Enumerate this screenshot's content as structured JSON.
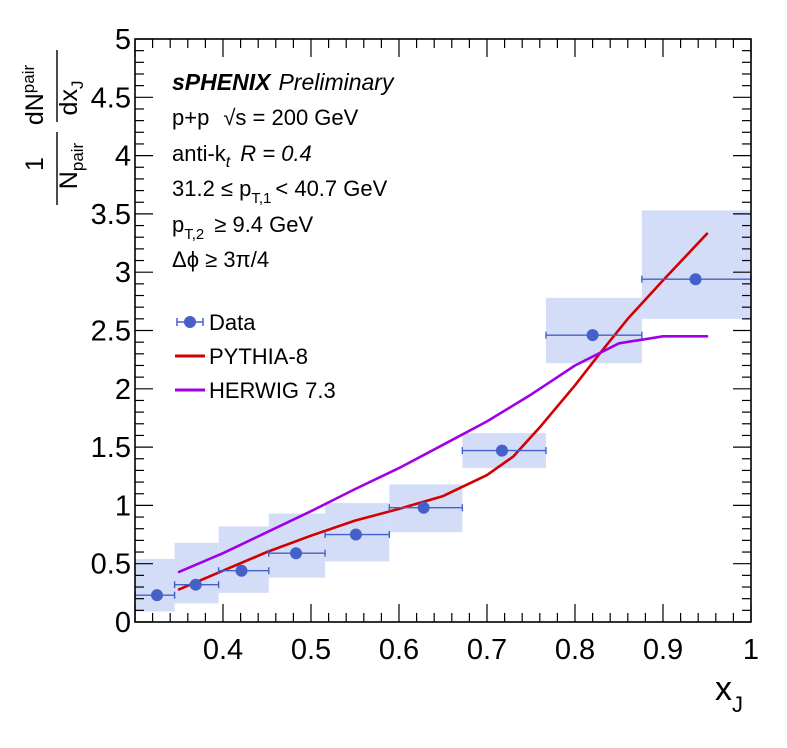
{
  "header": {
    "brand": "sPHENIX",
    "status": "Preliminary"
  },
  "annotations": {
    "system": "p+p",
    "energy": "√s = 200 GeV",
    "jet_algo": "anti-k",
    "jet_algo_sub": "t",
    "radius": "R = 0.4",
    "pt1_pre": "31.2 ≤ p",
    "pt1_sub": "T,1",
    "pt1_post": "< 40.7 GeV",
    "pt2_pre": "p",
    "pt2_sub": "T,2",
    "pt2_post": "≥ 9.4 GeV",
    "dphi": "Δϕ ≥ 3π/4"
  },
  "axes": {
    "x_title": "x",
    "x_title_sub": "J",
    "y_title_num_main": "1",
    "y_title_den_main": "N",
    "y_title_den_sub": "pair",
    "y_title_d_main": "dN",
    "y_title_d_sub": "pair",
    "y_title_dx_main": "dx",
    "y_title_dx_sub": "J"
  },
  "legend": {
    "data": "Data",
    "pythia": "PYTHIA-8",
    "herwig": "HERWIG 7.3"
  },
  "colors": {
    "data": "#4560c8",
    "syst_box": "#d4ddf8",
    "pythia": "#d20000",
    "herwig": "#a000e6"
  },
  "chart_data": {
    "type": "scatter",
    "xlim": [
      0.3,
      1.0
    ],
    "ylim": [
      0,
      5
    ],
    "xticks": [
      "0.4",
      "0.5",
      "0.6",
      "0.7",
      "0.8",
      "0.9",
      "1"
    ],
    "xtick_values": [
      0.4,
      0.5,
      0.6,
      0.7,
      0.8,
      0.9,
      1.0
    ],
    "yticks": [
      "0",
      "0.5",
      "1",
      "1.5",
      "2",
      "2.5",
      "3",
      "3.5",
      "4",
      "4.5",
      "5"
    ],
    "ytick_values": [
      0,
      0.5,
      1,
      1.5,
      2,
      2.5,
      3,
      3.5,
      4,
      4.5,
      5
    ],
    "data_points": [
      {
        "x": 0.325,
        "y": 0.23,
        "xlo": 0.3,
        "xhi": 0.345,
        "syst_lo": 0.09,
        "syst_hi": 0.54
      },
      {
        "x": 0.369,
        "y": 0.32,
        "xlo": 0.345,
        "xhi": 0.395,
        "syst_lo": 0.16,
        "syst_hi": 0.68
      },
      {
        "x": 0.421,
        "y": 0.44,
        "xlo": 0.395,
        "xhi": 0.452,
        "syst_lo": 0.25,
        "syst_hi": 0.82
      },
      {
        "x": 0.483,
        "y": 0.59,
        "xlo": 0.452,
        "xhi": 0.516,
        "syst_lo": 0.38,
        "syst_hi": 0.93
      },
      {
        "x": 0.551,
        "y": 0.75,
        "xlo": 0.516,
        "xhi": 0.589,
        "syst_lo": 0.52,
        "syst_hi": 1.02
      },
      {
        "x": 0.628,
        "y": 0.98,
        "xlo": 0.589,
        "xhi": 0.672,
        "syst_lo": 0.77,
        "syst_hi": 1.18
      },
      {
        "x": 0.717,
        "y": 1.47,
        "xlo": 0.672,
        "xhi": 0.767,
        "syst_lo": 1.32,
        "syst_hi": 1.62
      },
      {
        "x": 0.82,
        "y": 2.46,
        "xlo": 0.767,
        "xhi": 0.876,
        "syst_lo": 2.22,
        "syst_hi": 2.78
      },
      {
        "x": 0.937,
        "y": 2.94,
        "xlo": 0.876,
        "xhi": 1.0,
        "syst_lo": 2.6,
        "syst_hi": 3.53
      }
    ],
    "series": [
      {
        "name": "PYTHIA-8",
        "x": [
          0.35,
          0.4,
          0.45,
          0.5,
          0.55,
          0.6,
          0.65,
          0.7,
          0.73,
          0.76,
          0.8,
          0.83,
          0.86,
          0.9,
          0.95
        ],
        "y": [
          0.28,
          0.44,
          0.6,
          0.74,
          0.87,
          0.97,
          1.08,
          1.26,
          1.42,
          1.67,
          2.03,
          2.32,
          2.6,
          2.93,
          3.33
        ]
      },
      {
        "name": "HERWIG 7.3",
        "x": [
          0.35,
          0.4,
          0.45,
          0.5,
          0.55,
          0.6,
          0.65,
          0.7,
          0.75,
          0.8,
          0.85,
          0.9,
          0.95
        ],
        "y": [
          0.43,
          0.59,
          0.77,
          0.95,
          1.14,
          1.32,
          1.52,
          1.72,
          1.95,
          2.2,
          2.39,
          2.45,
          2.45
        ]
      }
    ],
    "xlabel": "xJ",
    "ylabel": "1/Npair dNpair/dxJ",
    "grid": false,
    "legend_position": "top-left"
  }
}
